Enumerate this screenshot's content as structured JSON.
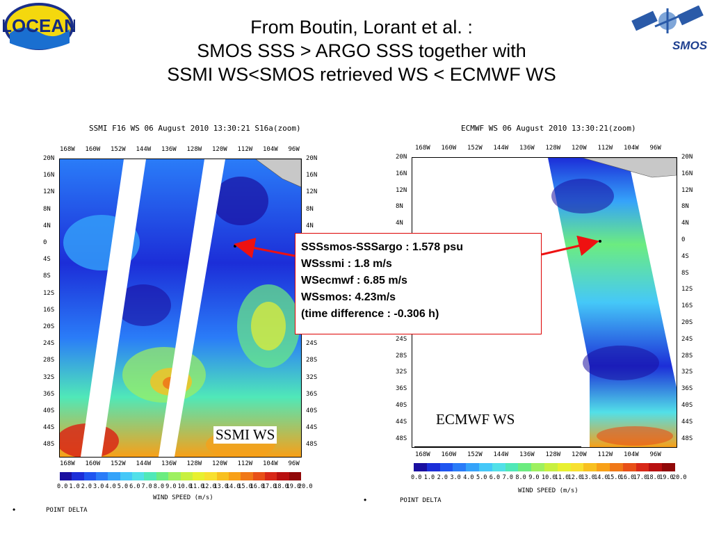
{
  "logos": {
    "left_text": "LOCEAN",
    "right_text": "SMOS"
  },
  "title_lines": [
    "From Boutin, Lorant et al. :",
    "SMOS SSS > ARGO SSS together with",
    "SSMI WS<SMOS retrieved WS < ECMWF WS"
  ],
  "panels": {
    "left": {
      "title": "SSMI F16 WS 06 August 2010 13:30:21 S16a(zoom)",
      "label": "SSMI WS",
      "legend_title": "WIND SPEED (m/s)",
      "footnote": "POINT DELTA"
    },
    "right": {
      "title": "ECMWF WS 06 August 2010 13:30:21(zoom)",
      "label": "ECMWF WS",
      "legend_title": "WIND SPEED (m/s)",
      "footnote": "POINT DELTA"
    }
  },
  "lon_ticks": [
    "168W",
    "160W",
    "152W",
    "144W",
    "136W",
    "128W",
    "120W",
    "112W",
    "104W",
    "96W"
  ],
  "lat_ticks": [
    "20N",
    "16N",
    "12N",
    "8N",
    "4N",
    "0",
    "4S",
    "8S",
    "12S",
    "16S",
    "20S",
    "24S",
    "28S",
    "32S",
    "36S",
    "40S",
    "44S",
    "48S"
  ],
  "colorbar": {
    "labels": [
      "0.0",
      "1.0",
      "2.0",
      "3.0",
      "4.0",
      "5.0",
      "6.0",
      "7.0",
      "8.0",
      "9.0",
      "10.0",
      "11.0",
      "12.0",
      "13.0",
      "14.0",
      "15.0",
      "16.0",
      "17.0",
      "18.0",
      "19.0",
      "20.0"
    ],
    "colors": [
      "#1a0fa0",
      "#1c2ed8",
      "#1f55f0",
      "#2a7cf8",
      "#35a3fa",
      "#45c8f8",
      "#52e0e8",
      "#50e8b8",
      "#6cec80",
      "#9ef060",
      "#c8f040",
      "#e8f030",
      "#f8e030",
      "#f8c020",
      "#f8a018",
      "#f07818",
      "#e85018",
      "#d82818",
      "#b81010",
      "#900808"
    ]
  },
  "callout": {
    "lines": [
      "SSSsmos-SSSargo : 1.578 psu",
      "WSssmi : 1.8 m/s",
      "WSecmwf : 6.85 m/s",
      "WSsmos: 4.23m/s",
      "(time difference : -0.306 h)"
    ],
    "border_color": "#dd0000",
    "arrow_color": "#ee1111"
  }
}
